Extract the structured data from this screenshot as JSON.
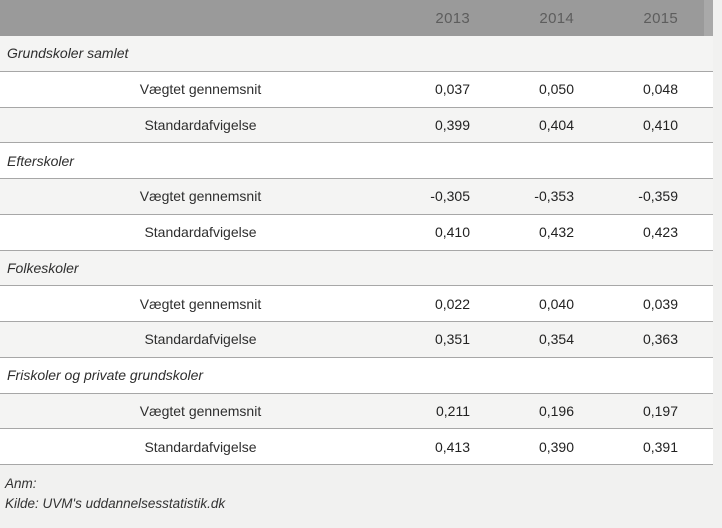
{
  "header": {
    "columns": [
      "2013",
      "2014",
      "2015"
    ]
  },
  "table": {
    "sections": [
      {
        "title": "Grundskoler samlet",
        "rows": [
          {
            "label": "Vægtet gennemsnit",
            "values": [
              "0,037",
              "0,050",
              "0,048"
            ]
          },
          {
            "label": "Standardafvigelse",
            "values": [
              "0,399",
              "0,404",
              "0,410"
            ]
          }
        ]
      },
      {
        "title": "Efterskoler",
        "rows": [
          {
            "label": "Vægtet gennemsnit",
            "values": [
              "-0,305",
              "-0,353",
              "-0,359"
            ]
          },
          {
            "label": "Standardafvigelse",
            "values": [
              "0,410",
              "0,432",
              "0,423"
            ]
          }
        ]
      },
      {
        "title": "Folkeskoler",
        "rows": [
          {
            "label": "Vægtet gennemsnit",
            "values": [
              "0,022",
              "0,040",
              "0,039"
            ]
          },
          {
            "label": "Standardafvigelse",
            "values": [
              "0,351",
              "0,354",
              "0,363"
            ]
          }
        ]
      },
      {
        "title": "Friskoler og private grundskoler",
        "rows": [
          {
            "label": "Vægtet gennemsnit",
            "values": [
              "0,211",
              "0,196",
              "0,197"
            ]
          },
          {
            "label": "Standardafvigelse",
            "values": [
              "0,413",
              "0,390",
              "0,391"
            ]
          }
        ]
      }
    ]
  },
  "footer": {
    "note_label": "Anm:",
    "source": "Kilde: UVM's uddannelsesstatistik.dk"
  },
  "colors": {
    "header_background": "#9a9a9a",
    "header_text": "#5d5d5d",
    "stripe_background": "#f4f4f3",
    "row_background": "#ffffff",
    "separator_line": "#a7a7a7",
    "page_background": "#f1f1f0",
    "body_text": "#2b2b2b"
  }
}
